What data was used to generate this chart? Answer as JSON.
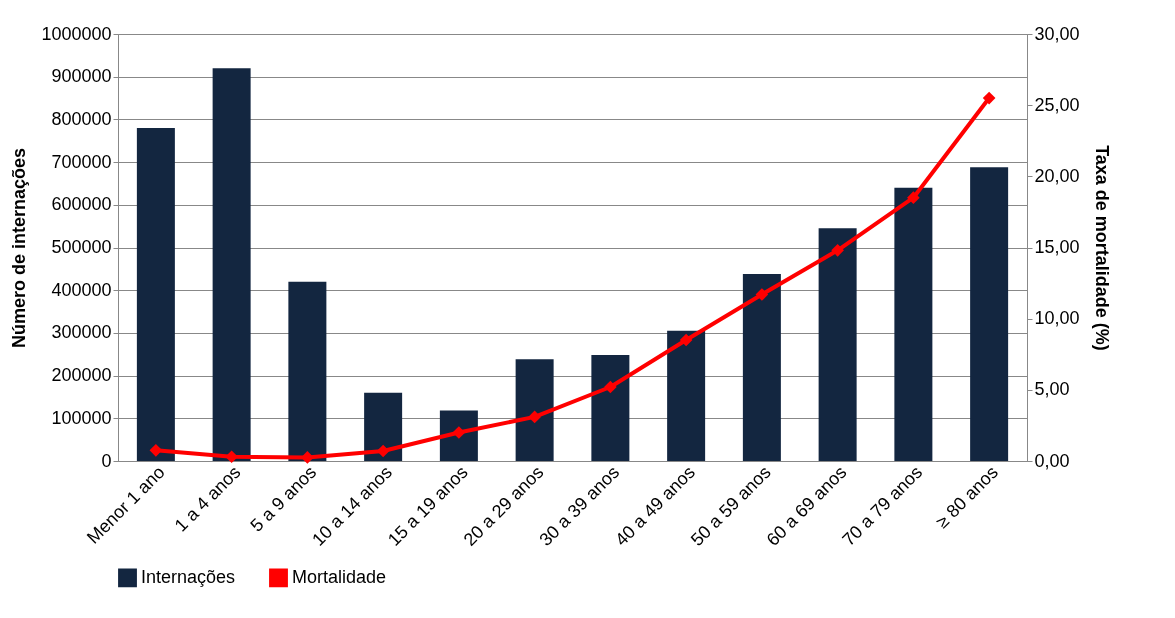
{
  "chart_data": {
    "type": "bar",
    "categories": [
      "Menor 1 ano",
      "1 a 4 anos",
      "5 a 9 anos",
      "10 a 14 anos",
      "15 a 19 anos",
      "20 a 29 anos",
      "30 a 39 anos",
      "40 a 49 anos",
      "50 a 59 anos",
      "60 a 69 anos",
      "70 a 79 anos",
      "≥ 80 anos"
    ],
    "series": [
      {
        "name": "Internações",
        "color": "#132640",
        "values": [
          780000,
          920000,
          420000,
          160000,
          118000,
          238000,
          248000,
          305000,
          438000,
          545000,
          640000,
          688000
        ]
      },
      {
        "name": "Mortalidade",
        "type": "line",
        "axis": "y2",
        "color": "#ff0000",
        "marker": "diamond",
        "line_style": "solid",
        "values": [
          0.75,
          0.3,
          0.25,
          0.7,
          2.0,
          3.1,
          5.2,
          8.5,
          11.7,
          14.8,
          18.5,
          25.5
        ]
      }
    ],
    "ylabel": "Número de internações",
    "y2label": "Taxa de mortalidade (%)",
    "ylim": [
      0,
      1000000
    ],
    "yticks": [
      0,
      100000,
      200000,
      300000,
      400000,
      500000,
      600000,
      700000,
      800000,
      900000,
      1000000
    ],
    "y2lim": [
      0,
      30
    ],
    "y2ticks": [
      {
        "value": 0,
        "label": "0,00"
      },
      {
        "value": 5,
        "label": "5,00"
      },
      {
        "value": 10,
        "label": "10,00"
      },
      {
        "value": 15,
        "label": "15,00"
      },
      {
        "value": 20,
        "label": "20,00"
      },
      {
        "value": 25,
        "label": "25,00"
      },
      {
        "value": 30,
        "label": "30,00"
      }
    ],
    "grid": "y",
    "legend": "bottom"
  }
}
